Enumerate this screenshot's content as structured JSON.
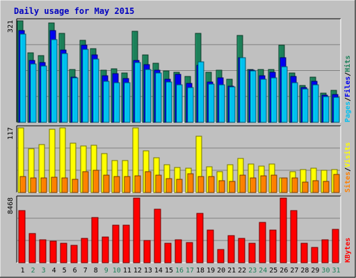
{
  "title": "Daily usage for May 2015",
  "colors": {
    "background": "#c0c0c0",
    "panel": "#c0c0c0",
    "title_text": "#0000c0",
    "hits": "#1d8059",
    "files": "#0000f0",
    "pages": "#00c0f0",
    "visits": "#ffff00",
    "sites": "#ff8000",
    "kbytes": "#ff0000",
    "weekday_label": "#000000",
    "weekend_label": "#1d8059"
  },
  "chart_data": [
    {
      "type": "bar",
      "name": "hits-files-pages",
      "y_max_label": "321",
      "ylim": [
        0,
        321
      ],
      "right_labels": [
        "Pages",
        "Files",
        "Hits"
      ],
      "x": [
        "1",
        "2",
        "3",
        "4",
        "5",
        "6",
        "7",
        "8",
        "9",
        "10",
        "11",
        "12",
        "13",
        "14",
        "15",
        "16",
        "17",
        "18",
        "19",
        "20",
        "21",
        "22",
        "23",
        "24",
        "25",
        "26",
        "27",
        "28",
        "29",
        "30",
        "31"
      ],
      "series": [
        {
          "name": "Hits",
          "values": [
            321,
            220,
            210,
            314,
            282,
            166,
            260,
            232,
            164,
            169,
            156,
            288,
            214,
            187,
            163,
            159,
            146,
            282,
            159,
            164,
            136,
            274,
            167,
            166,
            166,
            245,
            156,
            117,
            142,
            93,
            102
          ]
        },
        {
          "name": "Files",
          "values": [
            291,
            196,
            189,
            290,
            228,
            142,
            245,
            214,
            147,
            155,
            139,
            196,
            182,
            165,
            136,
            151,
            123,
            180,
            128,
            140,
            114,
            204,
            164,
            148,
            159,
            205,
            145,
            109,
            130,
            86,
            89
          ]
        },
        {
          "name": "Pages",
          "values": [
            280,
            184,
            178,
            261,
            218,
            141,
            230,
            199,
            130,
            125,
            125,
            188,
            167,
            156,
            127,
            119,
            111,
            192,
            120,
            119,
            113,
            204,
            162,
            137,
            140,
            175,
            125,
            106,
            118,
            82,
            79
          ]
        }
      ]
    },
    {
      "type": "bar",
      "name": "visits-sites",
      "y_max_label": "117",
      "ylim": [
        0,
        117
      ],
      "right_labels": [
        "Sites",
        "Visits"
      ],
      "x": [
        "1",
        "2",
        "3",
        "4",
        "5",
        "6",
        "7",
        "8",
        "9",
        "10",
        "11",
        "12",
        "13",
        "14",
        "15",
        "16",
        "17",
        "18",
        "19",
        "20",
        "21",
        "22",
        "23",
        "24",
        "25",
        "26",
        "27",
        "28",
        "29",
        "30",
        "31"
      ],
      "series": [
        {
          "name": "Visits",
          "values": [
            117,
            79,
            87,
            115,
            117,
            89,
            84,
            86,
            71,
            58,
            58,
            117,
            76,
            63,
            50,
            45,
            44,
            102,
            47,
            38,
            50,
            62,
            51,
            48,
            51,
            26,
            38,
            41,
            44,
            40,
            41
          ]
        },
        {
          "name": "Sites",
          "values": [
            29,
            26,
            27,
            28,
            27,
            24,
            38,
            40,
            32,
            29,
            29,
            30,
            38,
            32,
            25,
            24,
            34,
            29,
            29,
            22,
            20,
            31,
            26,
            30,
            31,
            26,
            26,
            19,
            22,
            20,
            33
          ]
        }
      ]
    },
    {
      "type": "bar",
      "name": "kbytes",
      "y_max_label": "8468",
      "ylim": [
        0,
        8468
      ],
      "right_labels": [
        "KBytes"
      ],
      "x": [
        "1",
        "2",
        "3",
        "4",
        "5",
        "6",
        "7",
        "8",
        "9",
        "10",
        "11",
        "12",
        "13",
        "14",
        "15",
        "16",
        "17",
        "18",
        "19",
        "20",
        "21",
        "22",
        "23",
        "24",
        "25",
        "26",
        "27",
        "28",
        "29",
        "30",
        "31"
      ],
      "series": [
        {
          "name": "KBytes",
          "values": [
            6869,
            3844,
            3000,
            2782,
            2515,
            2275,
            3217,
            5957,
            3413,
            4888,
            4888,
            8468,
            2915,
            7000,
            2515,
            3000,
            2658,
            6421,
            4239,
            1722,
            3560,
            3217,
            2515,
            5278,
            4239,
            8468,
            6869,
            2515,
            2000,
            3000,
            4380
          ]
        }
      ]
    }
  ],
  "x_axis": {
    "labels": [
      "1",
      "2",
      "3",
      "4",
      "5",
      "6",
      "7",
      "8",
      "9",
      "10",
      "11",
      "12",
      "13",
      "14",
      "15",
      "16",
      "17",
      "18",
      "19",
      "20",
      "21",
      "22",
      "23",
      "24",
      "25",
      "26",
      "27",
      "28",
      "29",
      "30",
      "31"
    ],
    "weekend": [
      "2",
      "3",
      "9",
      "10",
      "16",
      "17",
      "23",
      "24",
      "30",
      "31"
    ]
  }
}
